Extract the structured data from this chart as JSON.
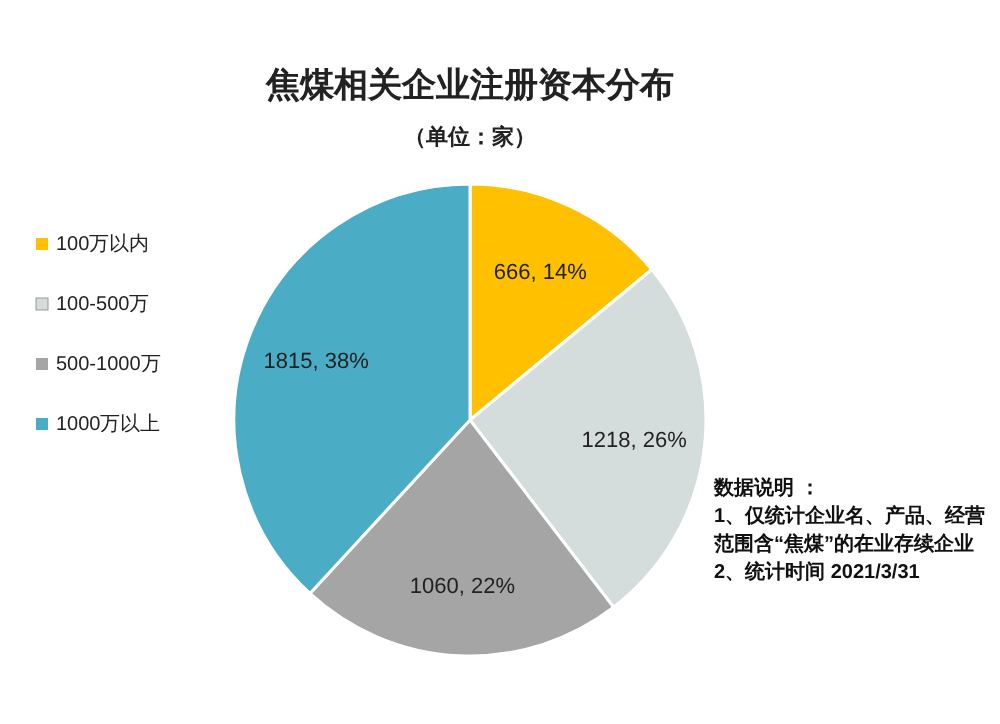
{
  "chart_data": {
    "type": "pie",
    "title": "焦煤相关企业注册资本分布",
    "subtitle": "（单位：家）",
    "categories": [
      "100万以内",
      "100-500万",
      "500-1000万",
      "1000万以上"
    ],
    "values": [
      666,
      1218,
      1060,
      1815
    ],
    "value_labels": [
      "666, 14%",
      "1218, 26%",
      "1060, 22%",
      "1815, 38%"
    ],
    "colors": [
      "#ffc000",
      "#d5dcdc",
      "#a5a5a5",
      "#4bacc6"
    ],
    "legend": "left",
    "annotations": [
      "数据说明 ：",
      "1、仅统计企业名、产品、经营范围含“焦煤”的在业存续企业",
      "2、统计时间 2021/3/31"
    ]
  }
}
